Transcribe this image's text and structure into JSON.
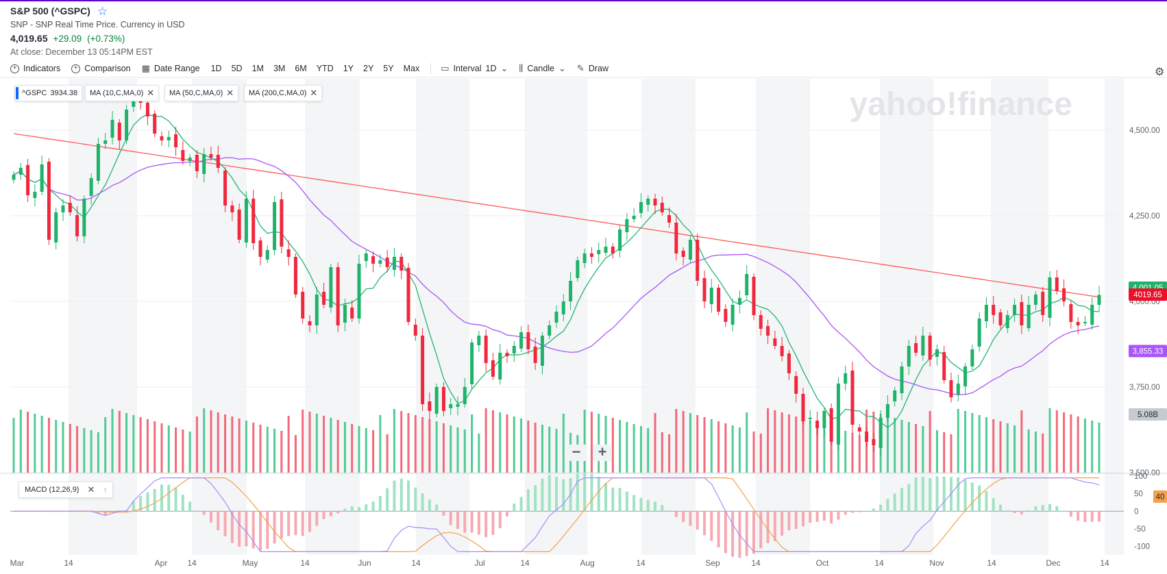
{
  "header": {
    "title": "S&P 500 (^GSPC)",
    "subtitle": "SNP - SNP Real Time Price. Currency in USD",
    "price": "4,019.65",
    "change": "+29.09",
    "change_pct": "(+0.73%)",
    "close_time": "At close: December 13 05:14PM EST"
  },
  "toolbar": {
    "indicators": "Indicators",
    "comparison": "Comparison",
    "date_range": "Date Range",
    "ranges": [
      "1D",
      "5D",
      "1M",
      "3M",
      "6M",
      "YTD",
      "1Y",
      "2Y",
      "5Y",
      "Max"
    ],
    "interval_label": "Interval",
    "interval_value": "1D",
    "chart_type": "Candle",
    "draw": "Draw"
  },
  "legends": {
    "symbol": "^GSPC",
    "symbol_value": "3934.38",
    "ma10": "MA (10,C,MA,0)",
    "ma50": "MA (50,C,MA,0)",
    "ma200": "MA (200,C,MA,0)",
    "macd": "MACD (12,26,9)"
  },
  "watermark": "yahoo!finance",
  "price_tags": {
    "last": "4019.65",
    "ma50": "3,855.33",
    "volume": "5.08B",
    "macd": "40"
  },
  "colors": {
    "up": "#00873c",
    "down": "#eb0f29",
    "ma10": "#22b573",
    "ma50": "#a855f7",
    "ma200": "#ff5a5a",
    "macd_line": "#a78bfa",
    "signal_line": "#f5a04a"
  },
  "chart_data": {
    "type": "candlestick",
    "x_labels": [
      "Mar",
      "14",
      "Apr",
      "14",
      "May",
      "14",
      "Jun",
      "14",
      "Jul",
      "14",
      "Aug",
      "14",
      "Sep",
      "14",
      "Oct",
      "14",
      "Nov",
      "14",
      "Dec",
      "14"
    ],
    "y_ticks": [
      "4,500.00",
      "4,250.00",
      "4,000.00",
      "3,750.00",
      "3,500.00"
    ],
    "y_tick_values": [
      4500,
      4250,
      4000,
      3750,
      3500
    ],
    "ylim": [
      3500,
      4600
    ],
    "macd_ticks": [
      "100",
      "50",
      "0",
      "-50",
      "-100"
    ],
    "macd_tick_values": [
      100,
      50,
      0,
      -50,
      -100
    ],
    "macd_ylim": [
      -120,
      100
    ],
    "closes": [
      4370,
      4390,
      4310,
      4320,
      4400,
      4180,
      4260,
      4280,
      4260,
      4190,
      4300,
      4360,
      4460,
      4470,
      4530,
      4470,
      4560,
      4600,
      4580,
      4540,
      4490,
      4470,
      4480,
      4450,
      4410,
      4420,
      4380,
      4430,
      4420,
      4390,
      4280,
      4260,
      4180,
      4300,
      4170,
      4130,
      4150,
      4290,
      4160,
      4130,
      4020,
      3950,
      3930,
      4020,
      3990,
      4100,
      3930,
      3990,
      3950,
      4110,
      4140,
      4110,
      4120,
      4100,
      4130,
      4090,
      3940,
      3900,
      3700,
      3680,
      3750,
      3680,
      3700,
      3700,
      3750,
      3880,
      3900,
      3820,
      3780,
      3850,
      3840,
      3870,
      3910,
      3860,
      3820,
      3900,
      3930,
      3970,
      4000,
      4060,
      4120,
      4140,
      4130,
      4150,
      4160,
      4140,
      4210,
      4240,
      4250,
      4290,
      4300,
      4280,
      4260,
      4230,
      4140,
      4130,
      4180,
      4060,
      4000,
      4040,
      3970,
      3940,
      3990,
      4010,
      4080,
      3960,
      3920,
      3900,
      3870,
      3840,
      3790,
      3730,
      3650,
      3660,
      3630,
      3680,
      3590,
      3760,
      3790,
      3640,
      3620,
      3590,
      3580,
      3660,
      3700,
      3740,
      3810,
      3870,
      3850,
      3900,
      3830,
      3860,
      3770,
      3720,
      3760,
      3810,
      3860,
      3950,
      3990,
      3960,
      3930,
      3960,
      3990,
      3930,
      3990,
      4020,
      3960,
      4070,
      4030,
      4000,
      3940,
      3930,
      3940,
      3990,
      4019
    ]
  }
}
